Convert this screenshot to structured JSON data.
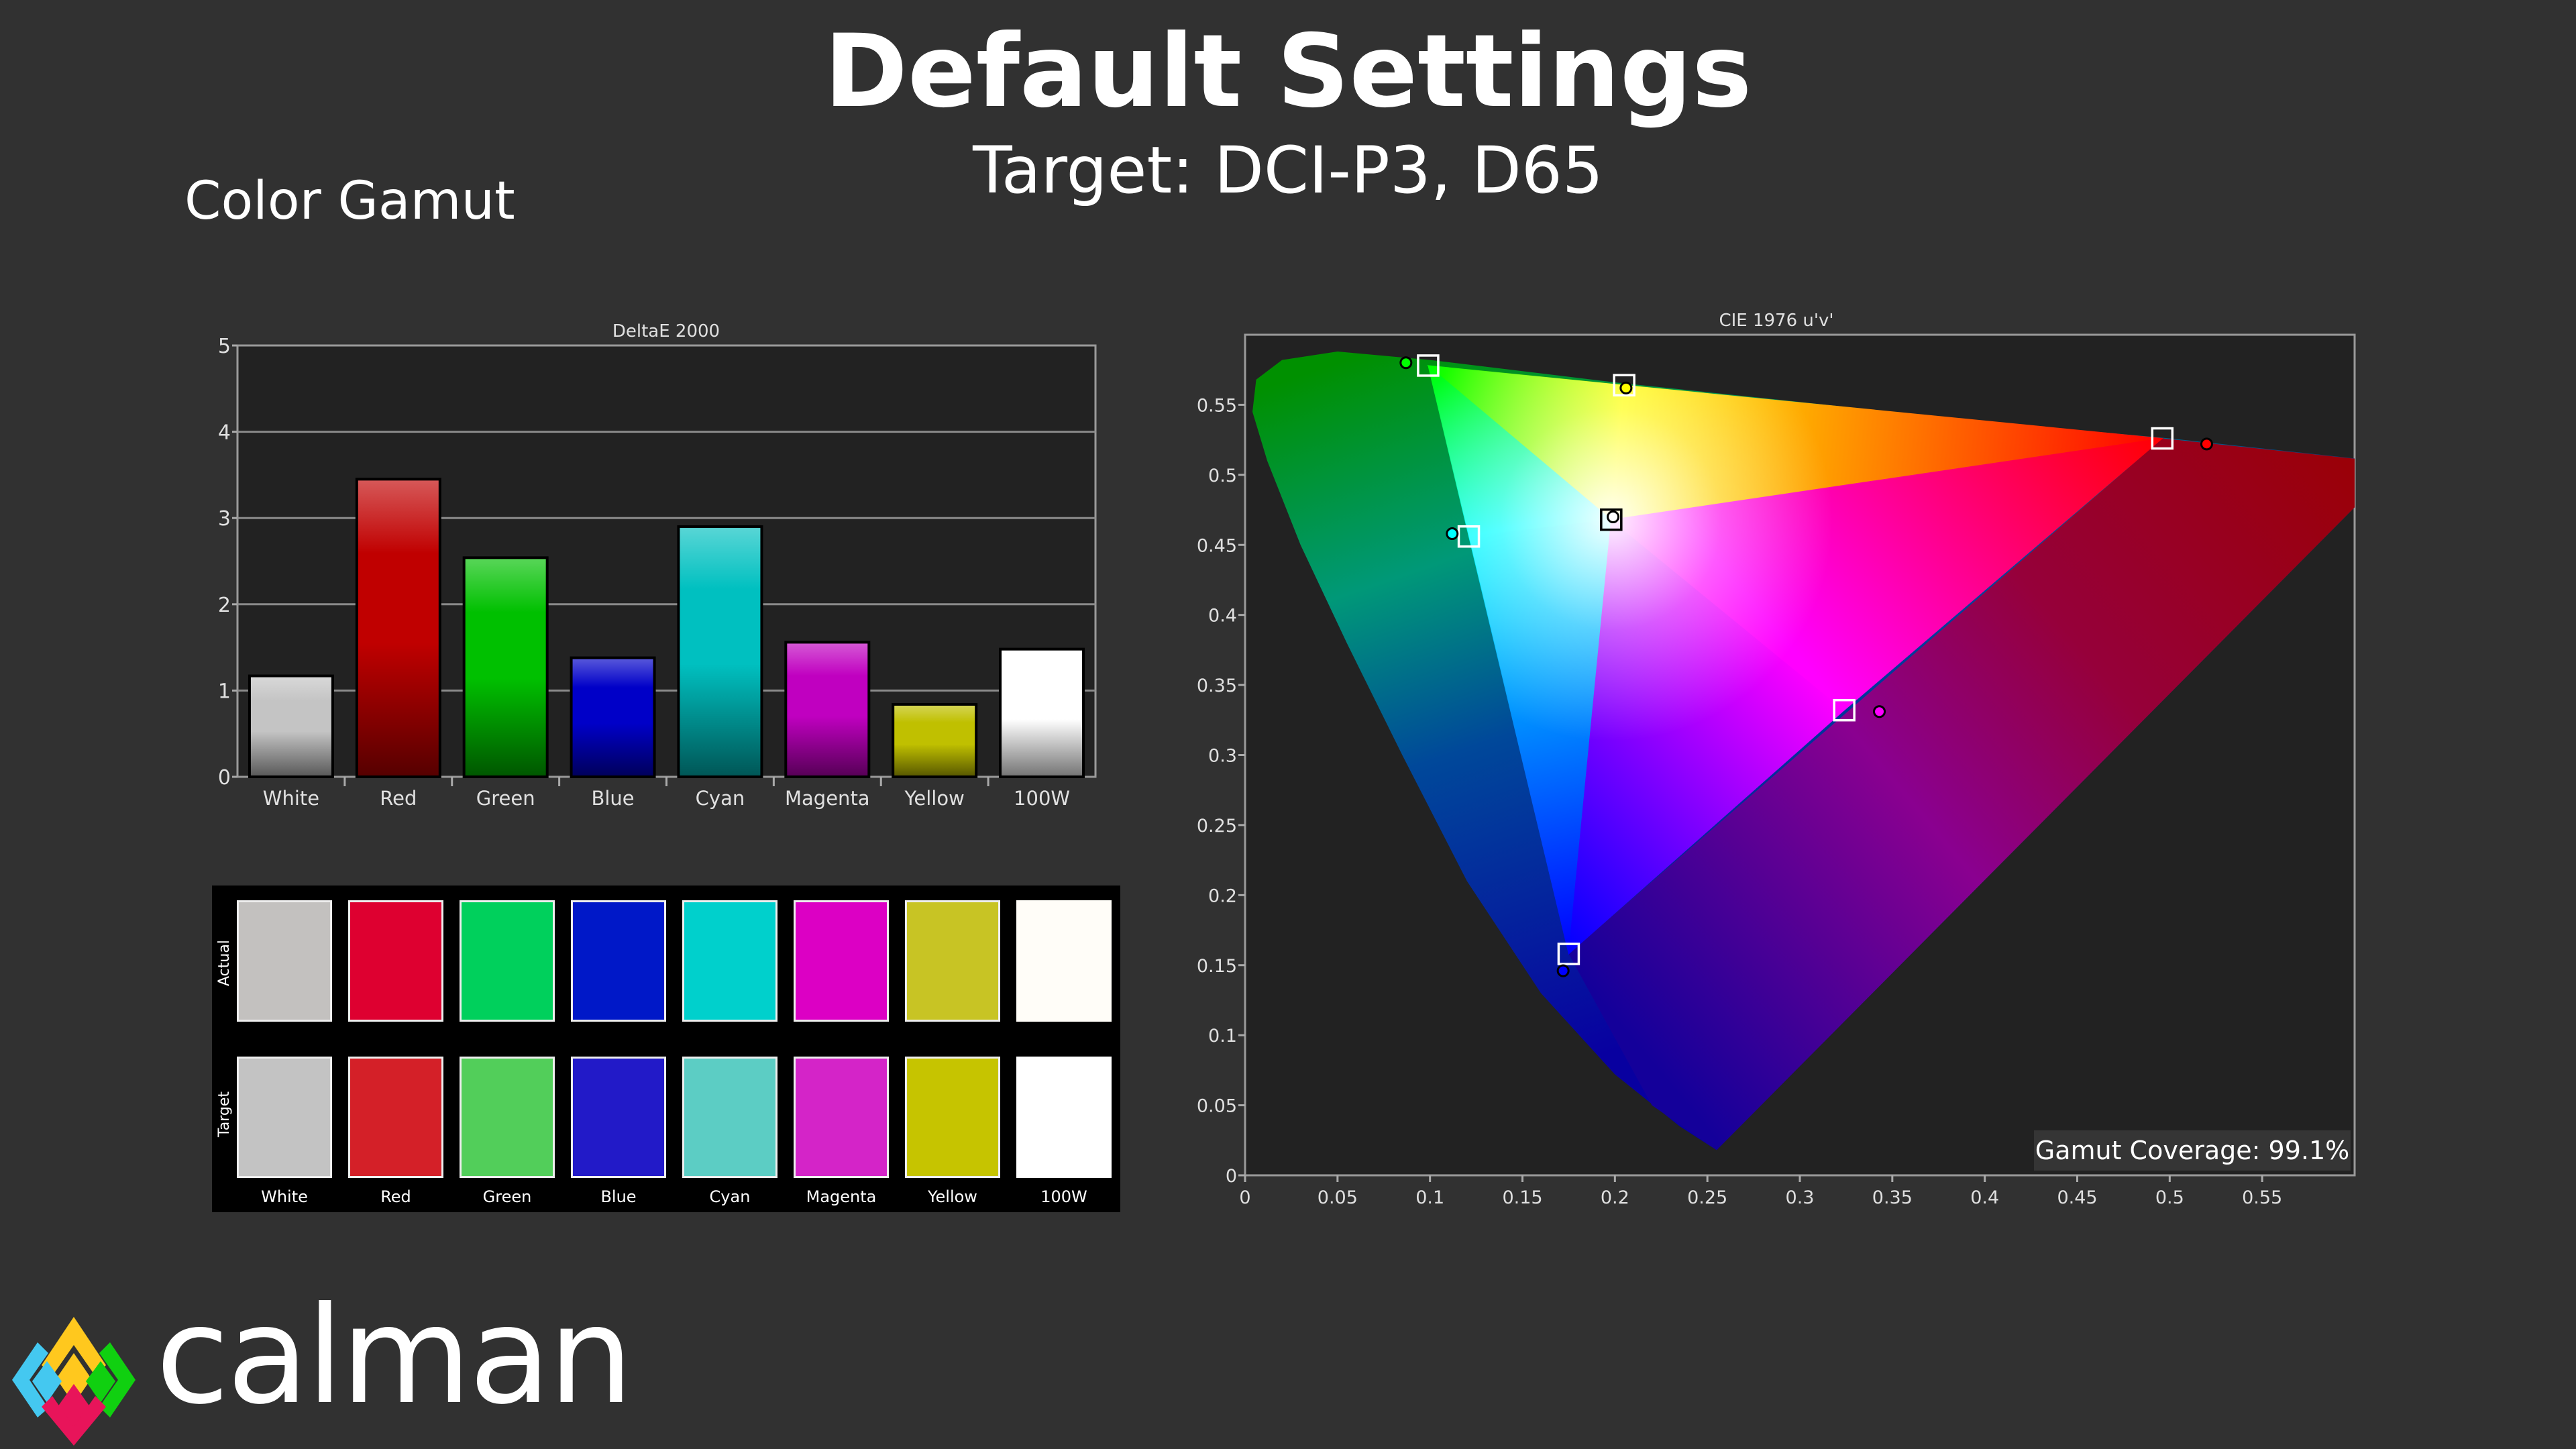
{
  "header": {
    "title": "Default Settings",
    "subtitle": "Target: DCI-P3, D65",
    "section": "Color Gamut"
  },
  "logo": {
    "text": "calman",
    "colors": [
      "#ffc81e",
      "#44c8f0",
      "#10d010",
      "#e8145a"
    ]
  },
  "chart_data": [
    {
      "type": "bar",
      "title": "DeltaE 2000",
      "categories": [
        "White",
        "Red",
        "Green",
        "Blue",
        "Cyan",
        "Magenta",
        "Yellow",
        "100W"
      ],
      "values": [
        1.17,
        3.45,
        2.54,
        1.38,
        2.9,
        1.56,
        0.84,
        1.48
      ],
      "colors": [
        "#c4c4c4",
        "#c00000",
        "#00c000",
        "#0000c8",
        "#00c0c0",
        "#c000c0",
        "#c0c000",
        "#ffffff"
      ],
      "ylim": [
        0,
        5
      ],
      "yticks": [
        "0",
        "1",
        "2",
        "3",
        "4",
        "5"
      ],
      "grid": true
    },
    {
      "type": "scatter",
      "title": "CIE 1976 u'v'",
      "xlim": [
        0,
        0.6
      ],
      "ylim": [
        0,
        0.6
      ],
      "xticks": [
        "0",
        "0.05",
        "0.1",
        "0.15",
        "0.2",
        "0.25",
        "0.3",
        "0.35",
        "0.4",
        "0.45",
        "0.5",
        "0.55"
      ],
      "yticks": [
        "0",
        "0.05",
        "0.1",
        "0.15",
        "0.2",
        "0.25",
        "0.3",
        "0.35",
        "0.4",
        "0.45",
        "0.5",
        "0.55"
      ],
      "points": [
        {
          "label": "Red",
          "color": "#ff0000",
          "target": [
            0.496,
            0.526
          ],
          "actual": [
            0.52,
            0.522
          ]
        },
        {
          "label": "Green",
          "color": "#00ff00",
          "target": [
            0.099,
            0.578
          ],
          "actual": [
            0.087,
            0.58
          ]
        },
        {
          "label": "Blue",
          "color": "#0000ff",
          "target": [
            0.175,
            0.158
          ],
          "actual": [
            0.172,
            0.146
          ]
        },
        {
          "label": "Cyan",
          "color": "#00ffff",
          "target": [
            0.121,
            0.456
          ],
          "actual": [
            0.112,
            0.458
          ]
        },
        {
          "label": "Magenta",
          "color": "#ff00ff",
          "target": [
            0.324,
            0.332
          ],
          "actual": [
            0.343,
            0.331
          ]
        },
        {
          "label": "Yellow",
          "color": "#ffff00",
          "target": [
            0.205,
            0.564
          ],
          "actual": [
            0.206,
            0.562
          ]
        },
        {
          "label": "White",
          "color": "#ffffff",
          "target": [
            0.198,
            0.468
          ],
          "actual": [
            0.199,
            0.47
          ]
        }
      ],
      "gamut_coverage_label": "Gamut Coverage:",
      "gamut_coverage_value": "99.1%"
    }
  ],
  "swatches": {
    "row_labels": [
      "Actual",
      "Target"
    ],
    "labels": [
      "White",
      "Red",
      "Green",
      "Blue",
      "Cyan",
      "Magenta",
      "Yellow",
      "100W"
    ],
    "actual": [
      "#c3c1bf",
      "#de0030",
      "#00d05c",
      "#0018c8",
      "#00d0cc",
      "#dc00c4",
      "#c8c424",
      "#fffdf8"
    ],
    "target": [
      "#c3c3c3",
      "#d42028",
      "#52ce5a",
      "#221ac8",
      "#5ccdc4",
      "#d424c8",
      "#c6c400",
      "#ffffff"
    ]
  }
}
